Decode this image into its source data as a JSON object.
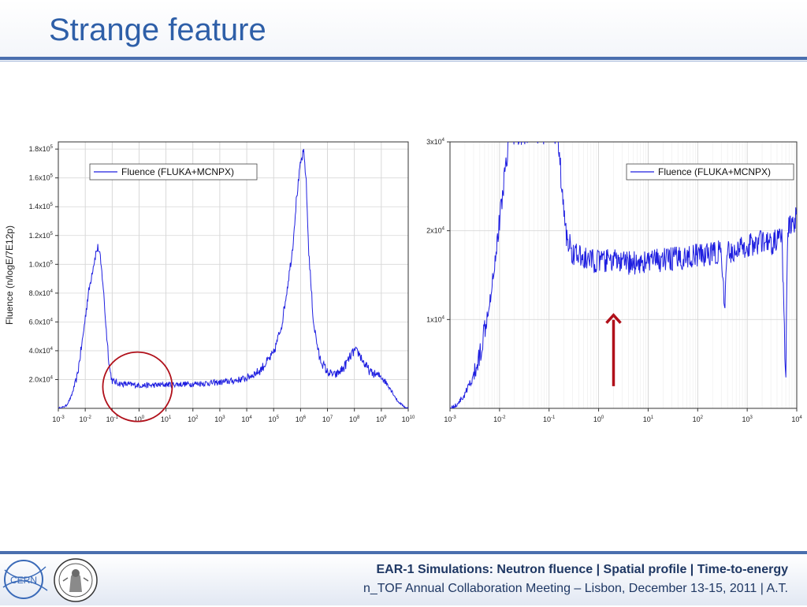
{
  "slide": {
    "title": "Strange feature",
    "footer_line1": "EAR-1 Simulations: Neutron fluence | Spatial profile | Time-to-energy",
    "footer_line2": "n_TOF Annual Collaboration Meeting – Lisbon, December 13-15, 2011 | A.T.",
    "cern_logo_text": "CERN"
  },
  "colors": {
    "title": "#2e5fa8",
    "series": "#1f1fe0",
    "annotation": "#b0101a",
    "rule": "#4a6fae",
    "footer_text": "#1f3864"
  },
  "chart_data": [
    {
      "type": "line",
      "xscale": "log",
      "xlim": [
        0.001,
        10000000000
      ],
      "ylim": [
        0,
        185000
      ],
      "ylabel": "Fluence (n/logE/7E12p)",
      "xticks": [
        {
          "mant": "10",
          "exp": "-3"
        },
        {
          "mant": "10",
          "exp": "-2"
        },
        {
          "mant": "10",
          "exp": "-1"
        },
        {
          "mant": "10",
          "exp": "0"
        },
        {
          "mant": "10",
          "exp": "1"
        },
        {
          "mant": "10",
          "exp": "2"
        },
        {
          "mant": "10",
          "exp": "3"
        },
        {
          "mant": "10",
          "exp": "4"
        },
        {
          "mant": "10",
          "exp": "5"
        },
        {
          "mant": "10",
          "exp": "6"
        },
        {
          "mant": "10",
          "exp": "7"
        },
        {
          "mant": "10",
          "exp": "8"
        },
        {
          "mant": "10",
          "exp": "9"
        },
        {
          "mant": "10",
          "exp": "10"
        }
      ],
      "yticks": [
        {
          "value": 20000,
          "mant": "2.0x10",
          "exp": "4"
        },
        {
          "value": 40000,
          "mant": "4.0x10",
          "exp": "4"
        },
        {
          "value": 60000,
          "mant": "6.0x10",
          "exp": "4"
        },
        {
          "value": 80000,
          "mant": "8.0x10",
          "exp": "4"
        },
        {
          "value": 100000,
          "mant": "1.0x10",
          "exp": "5"
        },
        {
          "value": 120000,
          "mant": "1.2x10",
          "exp": "5"
        },
        {
          "value": 140000,
          "mant": "1.4x10",
          "exp": "5"
        },
        {
          "value": 160000,
          "mant": "1.6x10",
          "exp": "5"
        },
        {
          "value": 180000,
          "mant": "1.8x10",
          "exp": "5"
        }
      ],
      "grid": true,
      "legend": {
        "position": "top-left",
        "entries": [
          "Fluence (FLUKA+MCNPX)"
        ]
      },
      "series": [
        {
          "name": "Fluence (FLUKA+MCNPX)",
          "points": [
            [
              0.001,
              0
            ],
            [
              0.0015,
              800
            ],
            [
              0.002,
              2000
            ],
            [
              0.003,
              8000
            ],
            [
              0.005,
              22000
            ],
            [
              0.008,
              48000
            ],
            [
              0.012,
              75000
            ],
            [
              0.018,
              95000
            ],
            [
              0.025,
              108000
            ],
            [
              0.03,
              112000
            ],
            [
              0.035,
              106000
            ],
            [
              0.045,
              88000
            ],
            [
              0.06,
              55000
            ],
            [
              0.08,
              28000
            ],
            [
              0.1,
              19000
            ],
            [
              0.2,
              17000
            ],
            [
              0.5,
              16500
            ],
            [
              1,
              16000
            ],
            [
              3,
              16000
            ],
            [
              10,
              16500
            ],
            [
              30,
              16800
            ],
            [
              100,
              17000
            ],
            [
              300,
              17500
            ],
            [
              1000,
              18000
            ],
            [
              3000,
              19000
            ],
            [
              10000,
              21000
            ],
            [
              30000,
              26000
            ],
            [
              100000,
              38000
            ],
            [
              200000,
              58000
            ],
            [
              300000,
              80000
            ],
            [
              500000,
              110000
            ],
            [
              700000,
              145000
            ],
            [
              1000000,
              170000
            ],
            [
              1300000,
              178000
            ],
            [
              1600000,
              160000
            ],
            [
              2000000,
              110000
            ],
            [
              3000000,
              60000
            ],
            [
              5000000,
              35000
            ],
            [
              10000000,
              25000
            ],
            [
              20000000,
              23000
            ],
            [
              40000000,
              28000
            ],
            [
              70000000,
              36000
            ],
            [
              100000000,
              40000
            ],
            [
              150000000,
              38000
            ],
            [
              250000000,
              30000
            ],
            [
              400000000,
              25000
            ],
            [
              1000000000,
              22000
            ],
            [
              2000000000,
              15000
            ],
            [
              4000000000,
              5000
            ],
            [
              8000000000,
              500
            ],
            [
              10000000000,
              0
            ]
          ]
        }
      ],
      "annotations": [
        {
          "type": "circle",
          "x": 1,
          "y": 15000
        }
      ]
    },
    {
      "type": "line",
      "xscale": "log",
      "xlim": [
        0.001,
        10000
      ],
      "ylim": [
        0,
        30000
      ],
      "xticks": [
        {
          "mant": "10",
          "exp": "-3"
        },
        {
          "mant": "10",
          "exp": "-2"
        },
        {
          "mant": "10",
          "exp": "-1"
        },
        {
          "mant": "10",
          "exp": "0"
        },
        {
          "mant": "10",
          "exp": "1"
        },
        {
          "mant": "10",
          "exp": "2"
        },
        {
          "mant": "10",
          "exp": "3"
        },
        {
          "mant": "10",
          "exp": "4"
        }
      ],
      "yticks": [
        {
          "value": 10000,
          "mant": "1x10",
          "exp": "4"
        },
        {
          "value": 20000,
          "mant": "2x10",
          "exp": "4"
        },
        {
          "value": 30000,
          "mant": "3x10",
          "exp": "4"
        }
      ],
      "grid": true,
      "legend": {
        "position": "top-right",
        "entries": [
          "Fluence (FLUKA+MCNPX)"
        ]
      },
      "series": [
        {
          "name": "Fluence (FLUKA+MCNPX)",
          "points": [
            [
              0.001,
              0
            ],
            [
              0.0013,
              300
            ],
            [
              0.002,
              1500
            ],
            [
              0.003,
              3500
            ],
            [
              0.004,
              6000
            ],
            [
              0.005,
              9000
            ],
            [
              0.007,
              14000
            ],
            [
              0.01,
              21000
            ],
            [
              0.013,
              27000
            ],
            [
              0.016,
              31000
            ],
            [
              0.15,
              31000
            ],
            [
              0.18,
              25000
            ],
            [
              0.22,
              19500
            ],
            [
              0.3,
              17500
            ],
            [
              0.5,
              16800
            ],
            [
              1,
              16500
            ],
            [
              2,
              16700
            ],
            [
              3,
              16300
            ],
            [
              10,
              16500
            ],
            [
              30,
              16800
            ],
            [
              100,
              17200
            ],
            [
              300,
              17600
            ],
            [
              350,
              11000
            ],
            [
              400,
              17500
            ],
            [
              600,
              17800
            ],
            [
              1000,
              18300
            ],
            [
              2000,
              18800
            ],
            [
              3000,
              18400
            ],
            [
              5000,
              19500
            ],
            [
              6000,
              2500
            ],
            [
              6500,
              20000
            ],
            [
              10000,
              21500
            ]
          ]
        }
      ],
      "annotations": [
        {
          "type": "arrow",
          "x": 2,
          "y_from": 2500,
          "y_to": 10500
        }
      ]
    }
  ]
}
